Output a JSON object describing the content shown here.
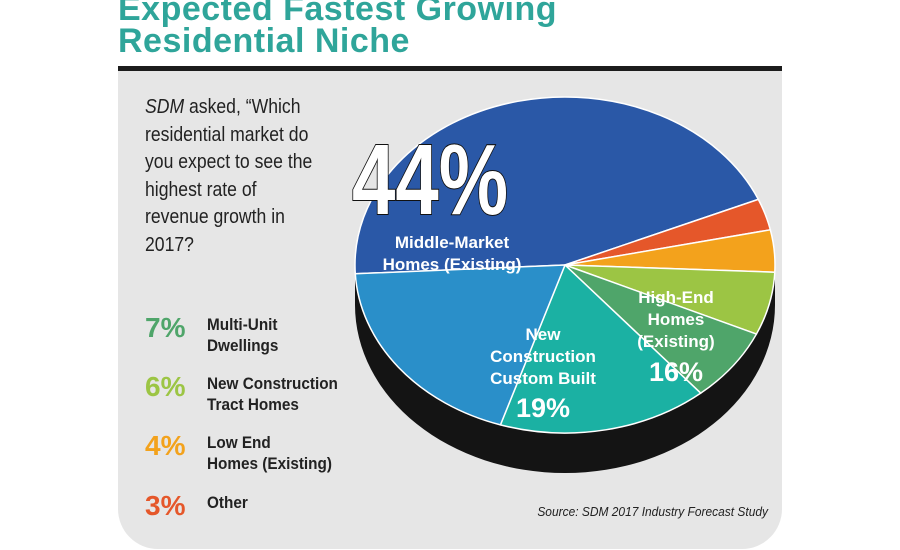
{
  "title": {
    "line1": "Expected Fastest Growing",
    "line2": "Residential Niche"
  },
  "question": {
    "prefix": "SDM",
    "text": " asked, “Which residential market do you expect to see the highest rate of revenue growth in 2017?"
  },
  "legend": [
    {
      "pct": "7%",
      "label": "Multi-Unit\nDwellings",
      "color": "#4fa56a"
    },
    {
      "pct": "6%",
      "label": "New Construction\nTract Homes",
      "color": "#9cc544"
    },
    {
      "pct": "4%",
      "label": "Low End\nHomes (Existing)",
      "color": "#f3a21c"
    },
    {
      "pct": "3%",
      "label": "Other",
      "color": "#e5572a"
    }
  ],
  "source": "Source: SDM 2017 Industry Forecast Study",
  "chart_data": {
    "type": "pie",
    "slices": [
      {
        "label": "Middle-Market Homes (Existing)",
        "value": 44,
        "color": "#2a58a7"
      },
      {
        "label": "Other",
        "value": 3,
        "color": "#e5572a"
      },
      {
        "label": "Low End Homes (Existing)",
        "value": 4,
        "color": "#f3a21c"
      },
      {
        "label": "New Construction Tract Homes",
        "value": 6,
        "color": "#9cc544"
      },
      {
        "label": "Multi-Unit Dwellings",
        "value": 7,
        "color": "#4fa56a"
      },
      {
        "label": "High-End Homes (Existing)",
        "value": 16,
        "color": "#1bb1a3"
      },
      {
        "label": "New Construction Custom Built",
        "value": 19,
        "color": "#2a8fc9"
      }
    ],
    "slice_labels": {
      "middle_market": {
        "pct": "44%",
        "line1": "Middle-Market",
        "line2": "Homes (Existing)"
      },
      "custom_built": {
        "line1": "New",
        "line2": "Construction",
        "line3": "Custom Built",
        "pct": "19%"
      },
      "high_end": {
        "line1": "High-End",
        "line2": "Homes",
        "line3": "(Existing)",
        "pct": "16%"
      }
    }
  }
}
